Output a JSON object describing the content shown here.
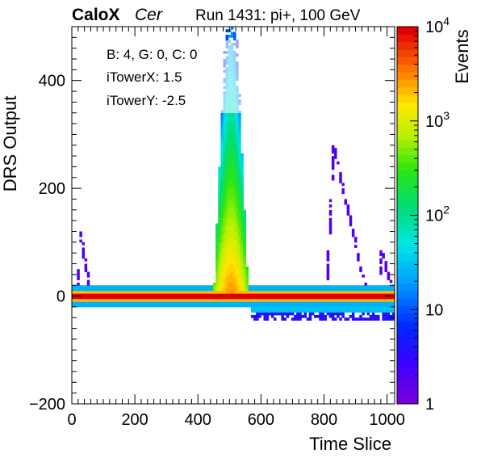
{
  "header": {
    "brand": "CaloX",
    "channel": "Cer",
    "run_label": "Run 1431: pi+, 100 GeV"
  },
  "info_box": {
    "line1": "B: 4, G: 0, C: 0",
    "line2": "iTowerX: 1.5",
    "line3": "iTowerY: -2.5"
  },
  "chart_data": {
    "type": "heatmap",
    "title": "",
    "xlabel": "Time Slice",
    "ylabel": "DRS Output",
    "zlabel": "Events",
    "xlim": [
      0,
      1024
    ],
    "ylim": [
      -200,
      500
    ],
    "zlim": [
      1,
      10000
    ],
    "z_log_scale": true,
    "x_ticks": [
      "0",
      "200",
      "400",
      "600",
      "800",
      "1000"
    ],
    "y_ticks": [
      "-200",
      "0",
      "200",
      "400"
    ],
    "z_tick_labels": [
      {
        "base": "1",
        "exp": "",
        "value": 1
      },
      {
        "base": "10",
        "exp": "",
        "value": 10
      },
      {
        "base": "10",
        "exp": "2",
        "value": 100
      },
      {
        "base": "10",
        "exp": "3",
        "value": 1000
      },
      {
        "base": "10",
        "exp": "4",
        "value": 10000
      }
    ],
    "features": [
      {
        "name": "pedestal band",
        "x": [
          0,
          1024
        ],
        "y_center": 0,
        "y_halfwidth": 18,
        "peak_events": 10000
      },
      {
        "name": "signal pulse",
        "x_peak": 505,
        "x_range": [
          450,
          600
        ],
        "y_range": [
          0,
          500
        ],
        "peak_events": 3000
      },
      {
        "name": "undershoot",
        "x": [
          570,
          1020
        ],
        "y": [
          -45,
          -20
        ],
        "peak_events": 30
      },
      {
        "name": "secondary spike",
        "x_peak": 830,
        "y_max": 280,
        "peak_events": 2
      },
      {
        "name": "early spike",
        "x_peak": 25,
        "y_max": 120,
        "peak_events": 2
      },
      {
        "name": "late spike",
        "x_peak": 980,
        "y_max": 90,
        "peak_events": 2
      }
    ]
  }
}
